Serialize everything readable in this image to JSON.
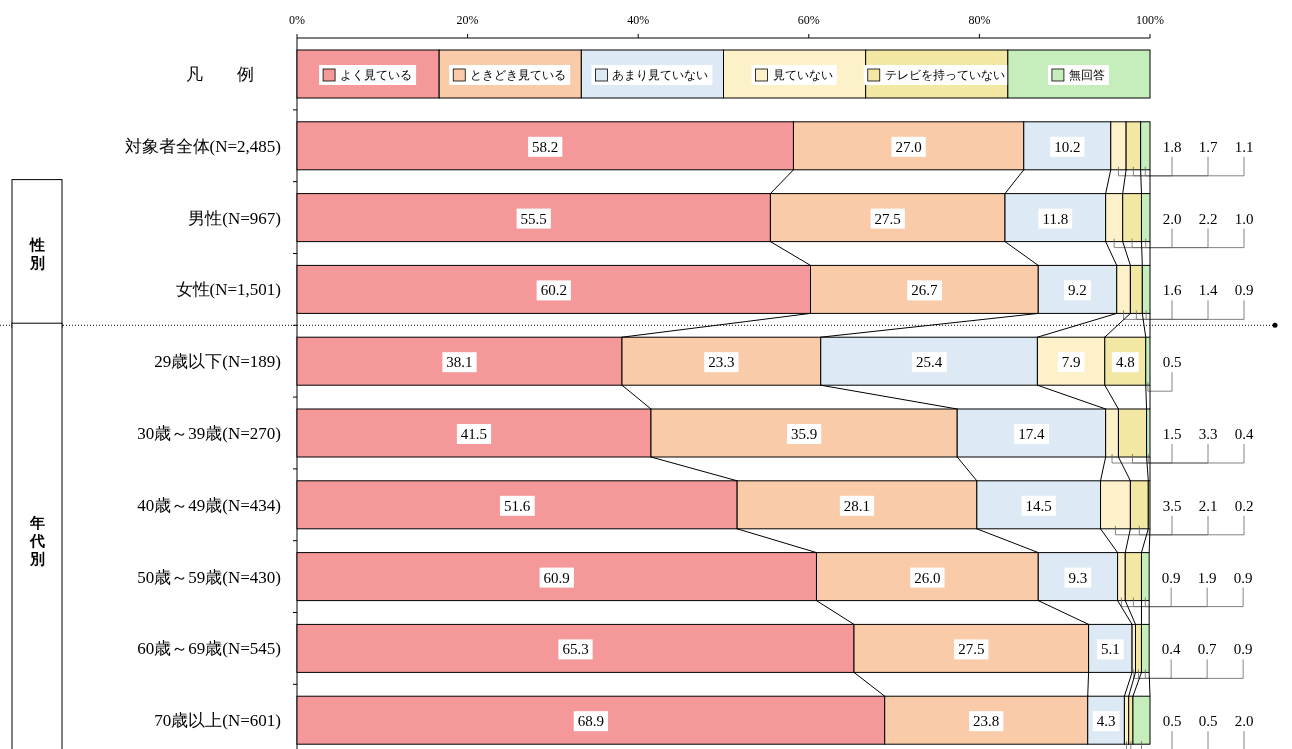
{
  "chart_data": {
    "type": "bar",
    "orientation": "horizontal",
    "stacked": true,
    "legend": "top",
    "legend_title": "凡　　例",
    "grid": false,
    "categories": [
      "対象者全体(N=2,485)",
      "男性(N=967)",
      "女性(N=1,501)",
      "29歳以下(N=189)",
      "30歳～39歳(N=270)",
      "40歳～49歳(N=434)",
      "50歳～59歳(N=430)",
      "60歳～69歳(N=545)",
      "70歳以上(N=601)"
    ],
    "annotations": [
      "性別",
      "年代別"
    ],
    "xlim": [
      0,
      100
    ],
    "xticks": [
      {
        "value": 0,
        "label": "0%"
      },
      {
        "value": 20,
        "label": "20%"
      },
      {
        "value": 40,
        "label": "40%"
      },
      {
        "value": 60,
        "label": "60%"
      },
      {
        "value": 80,
        "label": "80%"
      },
      {
        "value": 100,
        "label": "100%"
      }
    ],
    "series": [
      {
        "name": "よく見ている",
        "color": "#f4989a",
        "values": [
          58.2,
          55.5,
          60.2,
          38.1,
          41.5,
          51.6,
          60.9,
          65.3,
          68.9
        ],
        "value_labels": [
          "58.2",
          "55.5",
          "60.2",
          "38.1",
          "41.5",
          "51.6",
          "60.9",
          "65.3",
          "68.9"
        ]
      },
      {
        "name": "ときどき見ている",
        "color": "#f9cba8",
        "values": [
          27.0,
          27.5,
          26.7,
          23.3,
          35.9,
          28.1,
          26.0,
          27.5,
          23.8
        ],
        "value_labels": [
          "27.0",
          "27.5",
          "26.7",
          "23.3",
          "35.9",
          "28.1",
          "26.0",
          "27.5",
          "23.8"
        ]
      },
      {
        "name": "あまり見ていない",
        "color": "#dde9f4",
        "values": [
          10.2,
          11.8,
          9.2,
          25.4,
          17.4,
          14.5,
          9.3,
          5.1,
          4.3
        ],
        "value_labels": [
          "10.2",
          "11.8",
          "9.2",
          "25.4",
          "17.4",
          "14.5",
          "9.3",
          "5.1",
          "4.3"
        ]
      },
      {
        "name": "見ていない",
        "color": "#fdf1c9",
        "values": [
          1.8,
          2.0,
          1.6,
          7.9,
          1.5,
          3.5,
          0.9,
          0.4,
          0.5
        ],
        "value_labels": [
          "1.8",
          "2.0",
          "1.6",
          "7.9",
          "1.5",
          "3.5",
          "0.9",
          "0.4",
          "0.5"
        ]
      },
      {
        "name": "テレビを持っていない",
        "color": "#f3e7a4",
        "values": [
          1.7,
          2.2,
          1.4,
          4.8,
          3.3,
          2.1,
          1.9,
          0.7,
          0.5
        ],
        "value_labels": [
          "1.7",
          "2.2",
          "1.4",
          "4.8",
          "3.3",
          "2.1",
          "1.9",
          "0.7",
          "0.5"
        ]
      },
      {
        "name": "無回答",
        "color": "#c5eebc",
        "values": [
          1.1,
          1.0,
          0.9,
          0.5,
          0.4,
          0.2,
          0.9,
          0.9,
          2.0
        ],
        "value_labels": [
          "1.1",
          "1.0",
          "0.9",
          "0.5",
          "0.4",
          "0.2",
          "0.9",
          "0.9",
          "2.0"
        ]
      }
    ]
  }
}
